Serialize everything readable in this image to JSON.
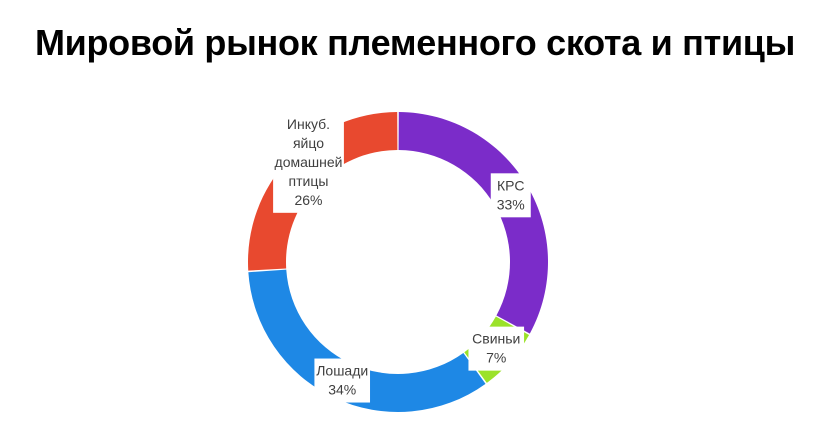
{
  "chart_data": {
    "type": "pie",
    "donut": true,
    "title": "Мировой рынок племенного скота и птицы",
    "slices": [
      {
        "name": "КРС",
        "value": 33,
        "label": "33%",
        "color": "#7B2CC9"
      },
      {
        "name": "Свиньи",
        "value": 7,
        "label": "7%",
        "color": "#9BE22A"
      },
      {
        "name": "Лошади",
        "value": 34,
        "label": "34%",
        "color": "#1E88E5"
      },
      {
        "name": "Инкуб. яйцо домашней птицы",
        "name_lines": [
          "Инкуб.",
          "яйцо",
          "домашней",
          "птицы"
        ],
        "value": 26,
        "label": "26%",
        "color": "#E8492F"
      }
    ]
  }
}
